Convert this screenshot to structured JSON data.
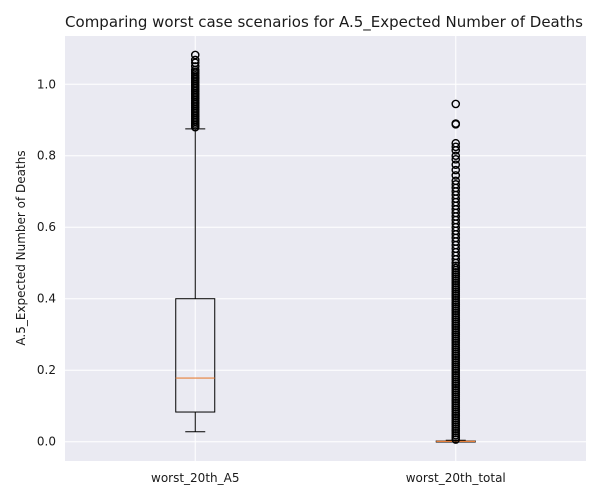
{
  "chart_data": {
    "type": "boxplot",
    "title": "Comparing worst case scenarios for A.5_Expected Number of Deaths",
    "xlabel": "",
    "ylabel": "A.5_Expected Number of Deaths",
    "ylim": [
      -0.054,
      1.135
    ],
    "yticks": [
      0.0,
      0.2,
      0.4,
      0.6,
      0.8,
      1.0
    ],
    "ytick_labels": [
      "0.0",
      "0.2",
      "0.4",
      "0.6",
      "0.8",
      "1.0"
    ],
    "grid": true,
    "categories": [
      "worst_20th_A5",
      "worst_20th_total"
    ],
    "boxes": [
      {
        "label": "worst_20th_A5",
        "whisker_low": 0.028,
        "q1": 0.083,
        "median": 0.178,
        "q3": 0.4,
        "whisker_high": 0.875,
        "outliers": [
          0.88,
          0.885,
          0.89,
          0.895,
          0.9,
          0.905,
          0.91,
          0.915,
          0.92,
          0.925,
          0.93,
          0.935,
          0.94,
          0.945,
          0.95,
          0.955,
          0.96,
          0.965,
          0.97,
          0.975,
          0.98,
          0.985,
          0.99,
          0.995,
          1.0,
          1.005,
          1.01,
          1.015,
          1.02,
          1.025,
          1.03,
          1.035,
          1.04,
          1.05,
          1.06,
          1.068,
          1.082
        ]
      },
      {
        "label": "worst_20th_total",
        "whisker_low": 0.0,
        "q1": 0.0,
        "median": 0.001,
        "q3": 0.002,
        "whisker_high": 0.004,
        "outliers": [
          0.006,
          0.012,
          0.018,
          0.024,
          0.03,
          0.036,
          0.042,
          0.048,
          0.054,
          0.06,
          0.066,
          0.072,
          0.078,
          0.084,
          0.09,
          0.096,
          0.102,
          0.108,
          0.114,
          0.12,
          0.126,
          0.132,
          0.138,
          0.144,
          0.15,
          0.156,
          0.162,
          0.168,
          0.174,
          0.18,
          0.186,
          0.192,
          0.198,
          0.204,
          0.21,
          0.216,
          0.222,
          0.228,
          0.234,
          0.24,
          0.246,
          0.252,
          0.258,
          0.264,
          0.27,
          0.276,
          0.282,
          0.288,
          0.294,
          0.3,
          0.306,
          0.312,
          0.318,
          0.324,
          0.33,
          0.336,
          0.342,
          0.348,
          0.354,
          0.36,
          0.366,
          0.372,
          0.378,
          0.384,
          0.39,
          0.396,
          0.402,
          0.408,
          0.414,
          0.42,
          0.426,
          0.432,
          0.438,
          0.444,
          0.45,
          0.456,
          0.462,
          0.468,
          0.474,
          0.48,
          0.486,
          0.492,
          0.5,
          0.51,
          0.52,
          0.53,
          0.54,
          0.55,
          0.56,
          0.57,
          0.58,
          0.59,
          0.6,
          0.61,
          0.62,
          0.63,
          0.64,
          0.65,
          0.66,
          0.67,
          0.68,
          0.69,
          0.7,
          0.71,
          0.72,
          0.73,
          0.745,
          0.76,
          0.775,
          0.79,
          0.8,
          0.815,
          0.825,
          0.835,
          0.888,
          0.89,
          0.945
        ]
      }
    ],
    "colors": {
      "plot_background": "#eaeaf2",
      "grid": "#ffffff",
      "box": "#000000",
      "median": "#e8803a",
      "text": "#1a1a1a"
    }
  }
}
